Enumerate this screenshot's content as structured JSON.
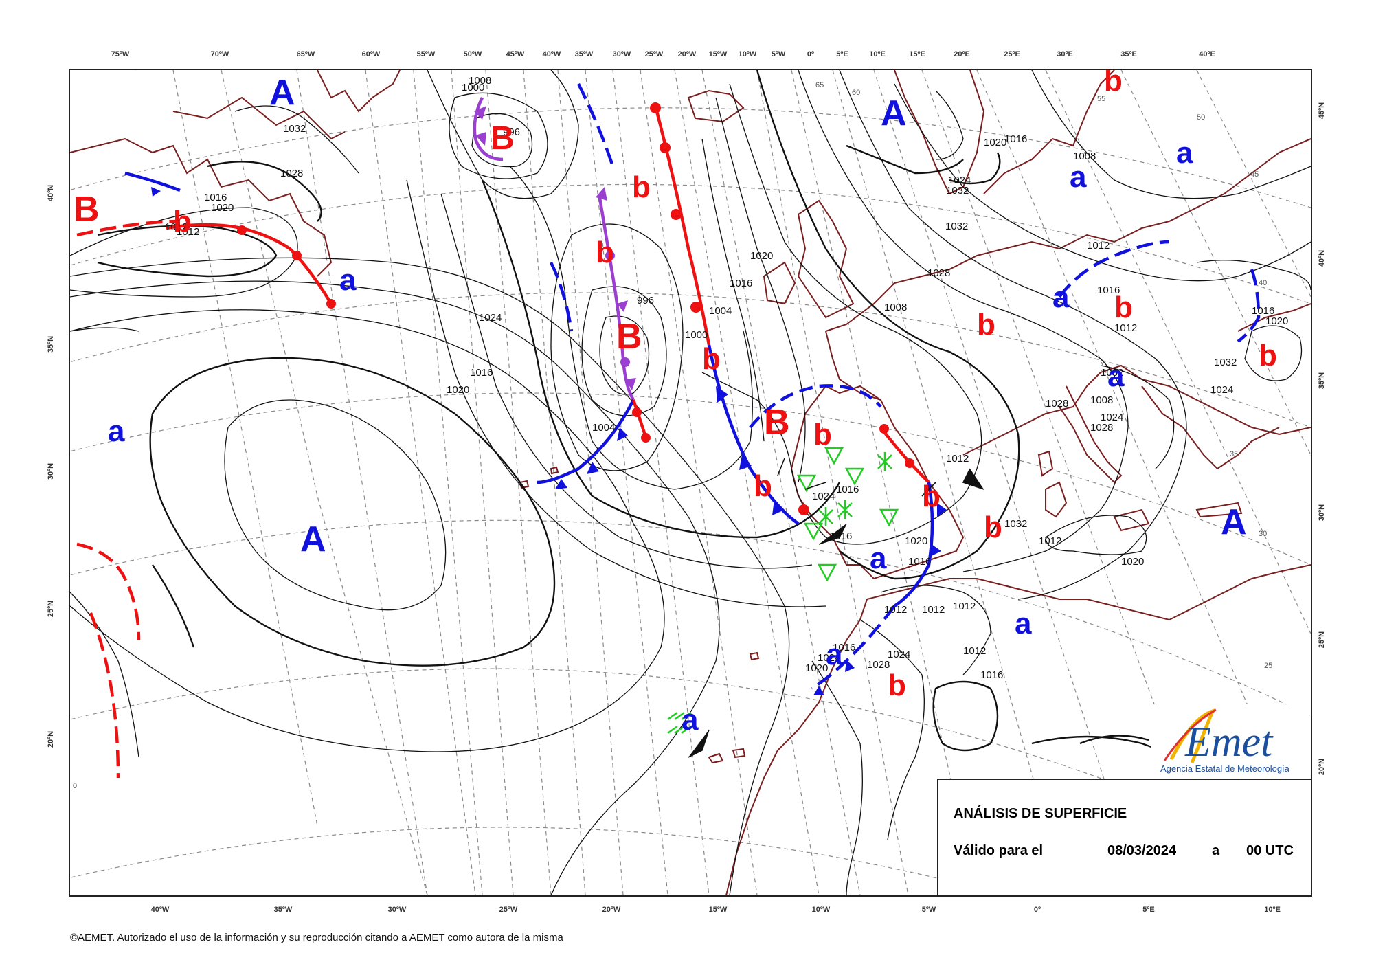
{
  "map": {
    "title": "ANÁLISIS DE SUPERFICIE",
    "valid_label": "Válido para el",
    "valid_date": "08/03/2024",
    "valid_at": "a",
    "valid_time": "00 UTC",
    "copyright": "©AEMET. Autorizado el uso de la información y su reproducción citando a AEMET como autora de la misma",
    "logo_name": "AEmet",
    "logo_subtitle": "Agencia Estatal de Meteorología",
    "colors": {
      "warm_front": "#ee1111",
      "cold_front": "#1111dd",
      "occluded_front": "#9b3fd0",
      "high_label": "#1111dd",
      "low_label": "#ee1111",
      "isobar": "#111111",
      "graticule": "#888888",
      "coast": "#7a1f1f",
      "precip": "#22cc22"
    }
  },
  "graticule": {
    "top_longitudes": [
      "75ºW",
      "70ºW",
      "65ºW",
      "60ºW",
      "55ºW",
      "50ºW",
      "45ºW",
      "40ºW",
      "35ºW",
      "30ºW",
      "25ºW",
      "20ºW",
      "15ºW",
      "10ºW",
      "5ºW",
      "0º",
      "5ºE",
      "10ºE",
      "15ºE",
      "20ºE",
      "25ºE",
      "30ºE",
      "35ºE",
      "40ºE"
    ],
    "bottom_longitudes": [
      "40ºW",
      "35ºW",
      "30ºW",
      "25ºW",
      "20ºW",
      "15ºW",
      "10ºW",
      "5ºW",
      "0º",
      "5ºE",
      "10ºE"
    ],
    "left_latitudes": [
      "40ºN",
      "35ºN",
      "30ºN",
      "25ºN",
      "20ºN"
    ],
    "right_latitudes": [
      "45ºN",
      "40ºN",
      "35ºN",
      "30ºN",
      "25ºN",
      "20ºN"
    ],
    "inner_labels": [
      "65",
      "60",
      "55",
      "50",
      "45",
      "40",
      "35",
      "30",
      "25",
      "0"
    ]
  },
  "pressure_centers": {
    "high_major": "A",
    "high_minor": "a",
    "low_major": "B",
    "low_minor": "b"
  },
  "isobar_labels": [
    "1032",
    "1028",
    "1012",
    "1012",
    "1016",
    "1020",
    "1000",
    "996",
    "1008",
    "996",
    "1016",
    "1020",
    "1008",
    "1012",
    "1004",
    "1000",
    "1004",
    "1016",
    "1020",
    "1024",
    "1028",
    "1032",
    "1032",
    "1024",
    "1020",
    "1016",
    "1008",
    "1012",
    "1016",
    "1012",
    "1008",
    "1016",
    "1020",
    "1020",
    "1024",
    "1032",
    "1028",
    "1024",
    "1032",
    "1028",
    "1032",
    "1024",
    "1020",
    "1016",
    "1016",
    "1012",
    "1012",
    "1012",
    "1012",
    "1016",
    "1024",
    "1020",
    "1016",
    "1012",
    "1016",
    "1024",
    "1028"
  ]
}
